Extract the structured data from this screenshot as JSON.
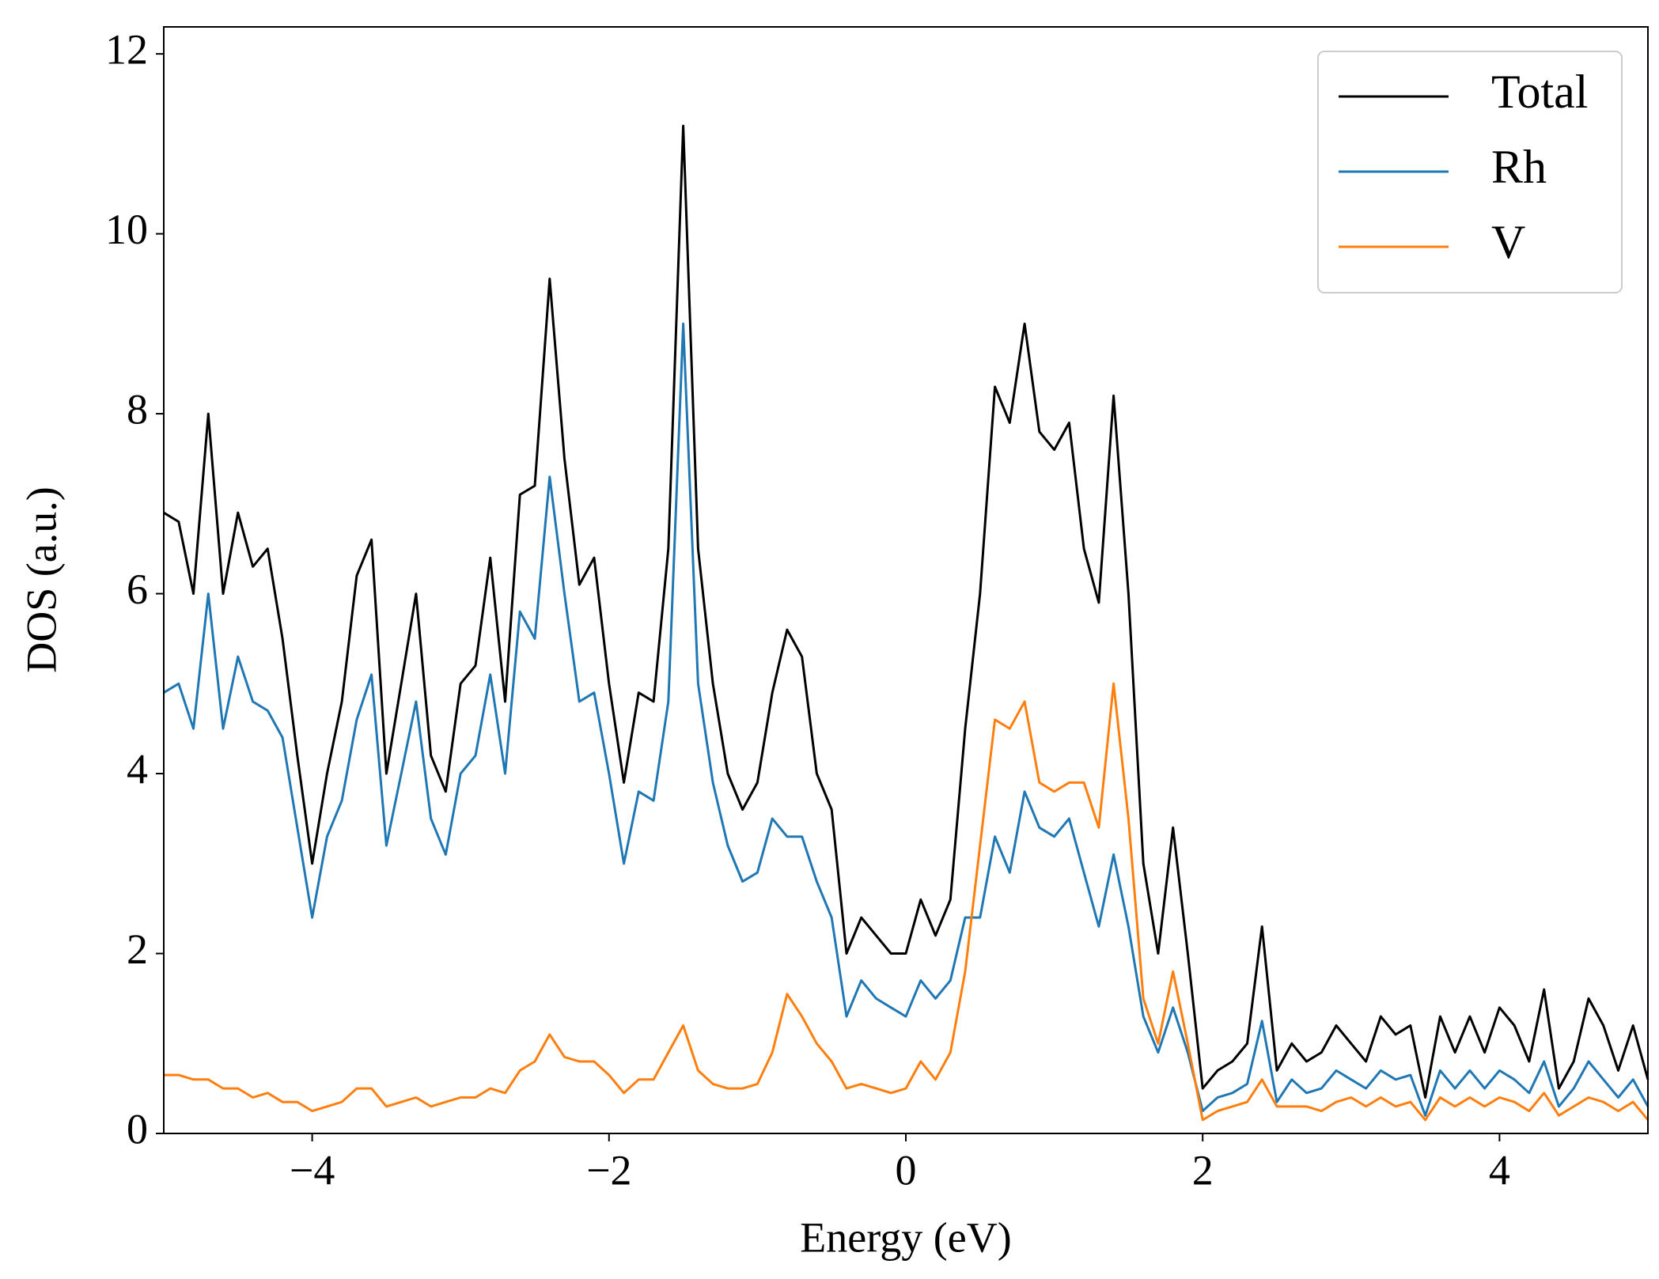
{
  "chart_data": {
    "type": "line",
    "xlabel": "Energy (eV)",
    "ylabel": "DOS (a.u.)",
    "x": [
      -5,
      -4.9,
      -4.8,
      -4.7,
      -4.6,
      -4.5,
      -4.4,
      -4.3,
      -4.2,
      -4.1,
      -4,
      -3.9,
      -3.8,
      -3.7,
      -3.6,
      -3.5,
      -3.4,
      -3.3,
      -3.2,
      -3.1,
      -3,
      -2.9,
      -2.8,
      -2.7,
      -2.6,
      -2.5,
      -2.4,
      -2.3,
      -2.2,
      -2.1,
      -2,
      -1.9,
      -1.8,
      -1.7,
      -1.6,
      -1.5,
      -1.4,
      -1.3,
      -1.2,
      -1.1,
      -1,
      -0.9,
      -0.8,
      -0.7,
      -0.6,
      -0.5,
      -0.4,
      -0.3,
      -0.2,
      -0.1,
      0,
      0.1,
      0.2,
      0.3,
      0.4,
      0.5,
      0.6,
      0.7,
      0.8,
      0.9,
      1,
      1.1,
      1.2,
      1.3,
      1.4,
      1.5,
      1.6,
      1.7,
      1.8,
      1.9,
      2,
      2.1,
      2.2,
      2.3,
      2.4,
      2.5,
      2.6,
      2.7,
      2.8,
      2.9,
      3,
      3.1,
      3.2,
      3.3,
      3.4,
      3.5,
      3.6,
      3.7,
      3.8,
      3.9,
      4,
      4.1,
      4.2,
      4.3,
      4.4,
      4.5,
      4.6,
      4.7,
      4.8,
      4.9,
      5
    ],
    "series": [
      {
        "name": "Total",
        "color": "#000000",
        "values": [
          6.9,
          6.8,
          6.0,
          8.0,
          6.0,
          6.9,
          6.3,
          6.5,
          5.5,
          4.2,
          3.0,
          4.0,
          4.8,
          6.2,
          6.6,
          4.0,
          5.0,
          6.0,
          4.2,
          3.8,
          5.0,
          5.2,
          6.4,
          4.8,
          7.1,
          7.2,
          9.5,
          7.5,
          6.1,
          6.4,
          5.0,
          3.9,
          4.9,
          4.8,
          6.5,
          11.2,
          6.5,
          5.0,
          4.0,
          3.6,
          3.9,
          4.9,
          5.6,
          5.3,
          4.0,
          3.6,
          2.0,
          2.4,
          2.2,
          2.0,
          2.0,
          2.6,
          2.2,
          2.6,
          4.5,
          6.0,
          8.3,
          7.9,
          9.0,
          7.8,
          7.6,
          7.9,
          6.5,
          5.9,
          8.2,
          6.0,
          3.0,
          2.0,
          3.4,
          2.0,
          0.5,
          0.7,
          0.8,
          1.0,
          2.3,
          0.7,
          1.0,
          0.8,
          0.9,
          1.2,
          1.0,
          0.8,
          1.3,
          1.1,
          1.2,
          0.4,
          1.3,
          0.9,
          1.3,
          0.9,
          1.4,
          1.2,
          0.8,
          1.6,
          0.5,
          0.8,
          1.5,
          1.2,
          0.7,
          1.2,
          0.6
        ]
      },
      {
        "name": "Rh",
        "color": "#1f77b4",
        "values": [
          4.9,
          5.0,
          4.5,
          6.0,
          4.5,
          5.3,
          4.8,
          4.7,
          4.4,
          3.4,
          2.4,
          3.3,
          3.7,
          4.6,
          5.1,
          3.2,
          4.0,
          4.8,
          3.5,
          3.1,
          4.0,
          4.2,
          5.1,
          4.0,
          5.8,
          5.5,
          7.3,
          6.0,
          4.8,
          4.9,
          4.0,
          3.0,
          3.8,
          3.7,
          4.8,
          9.0,
          5.0,
          3.9,
          3.2,
          2.8,
          2.9,
          3.5,
          3.3,
          3.3,
          2.8,
          2.4,
          1.3,
          1.7,
          1.5,
          1.4,
          1.3,
          1.7,
          1.5,
          1.7,
          2.4,
          2.4,
          3.3,
          2.9,
          3.8,
          3.4,
          3.3,
          3.5,
          2.9,
          2.3,
          3.1,
          2.3,
          1.3,
          0.9,
          1.4,
          0.9,
          0.25,
          0.4,
          0.45,
          0.55,
          1.25,
          0.35,
          0.6,
          0.45,
          0.5,
          0.7,
          0.6,
          0.5,
          0.7,
          0.6,
          0.65,
          0.2,
          0.7,
          0.5,
          0.7,
          0.5,
          0.7,
          0.6,
          0.45,
          0.8,
          0.3,
          0.5,
          0.8,
          0.6,
          0.4,
          0.6,
          0.3
        ]
      },
      {
        "name": "V",
        "color": "#ff7f0e",
        "values": [
          0.65,
          0.65,
          0.6,
          0.6,
          0.5,
          0.5,
          0.4,
          0.45,
          0.35,
          0.35,
          0.25,
          0.3,
          0.35,
          0.5,
          0.5,
          0.3,
          0.35,
          0.4,
          0.3,
          0.35,
          0.4,
          0.4,
          0.5,
          0.45,
          0.7,
          0.8,
          1.1,
          0.85,
          0.8,
          0.8,
          0.65,
          0.45,
          0.6,
          0.6,
          0.9,
          1.2,
          0.7,
          0.55,
          0.5,
          0.5,
          0.55,
          0.9,
          1.55,
          1.3,
          1.0,
          0.8,
          0.5,
          0.55,
          0.5,
          0.45,
          0.5,
          0.8,
          0.6,
          0.9,
          1.8,
          3.2,
          4.6,
          4.5,
          4.8,
          3.9,
          3.8,
          3.9,
          3.9,
          3.4,
          5.0,
          3.5,
          1.5,
          1.0,
          1.8,
          1.0,
          0.15,
          0.25,
          0.3,
          0.35,
          0.6,
          0.3,
          0.3,
          0.3,
          0.25,
          0.35,
          0.4,
          0.3,
          0.4,
          0.3,
          0.35,
          0.15,
          0.4,
          0.3,
          0.4,
          0.3,
          0.4,
          0.35,
          0.25,
          0.45,
          0.2,
          0.3,
          0.4,
          0.35,
          0.25,
          0.35,
          0.15
        ]
      }
    ],
    "xlim": [
      -5,
      5
    ],
    "ylim": [
      0,
      12.3
    ],
    "xticks": [
      {
        "value": -4,
        "label": "−4"
      },
      {
        "value": -2,
        "label": "−2"
      },
      0,
      2,
      4
    ],
    "yticks": [
      0,
      2,
      4,
      6,
      8,
      10,
      12
    ],
    "grid": false,
    "legend": "upper right"
  }
}
